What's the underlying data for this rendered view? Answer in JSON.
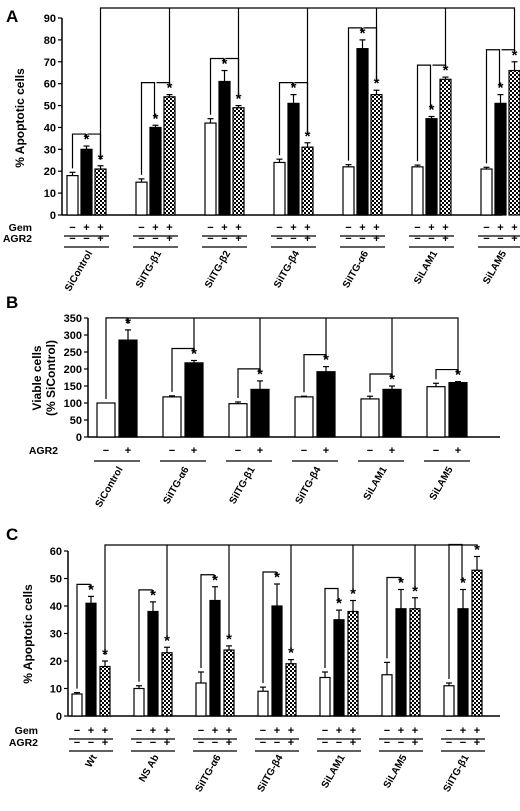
{
  "chart_data": [
    {
      "panel": "A",
      "type": "bar",
      "ylabel": "% Apoptotic cells",
      "ylim": [
        0,
        90
      ],
      "yticks": [
        0,
        10,
        20,
        30,
        40,
        50,
        60,
        70,
        80,
        90
      ],
      "categories": [
        "SiControl",
        "SiITG-β1",
        "SiITG-β2",
        "SiITG-β4",
        "SiITG-α6",
        "SiLAM1",
        "SiLAM5"
      ],
      "treatment_rows": [
        {
          "label": "Gem",
          "signs": [
            "−",
            "+",
            "+"
          ]
        },
        {
          "label": "AGR2",
          "signs": [
            "−",
            "−",
            "+"
          ]
        }
      ],
      "series": [
        {
          "fill": "white",
          "values": [
            18,
            15,
            42,
            24,
            22,
            22,
            21
          ],
          "errors": [
            1.5,
            1.5,
            2,
            1.5,
            1,
            0.8,
            0.8
          ],
          "stars": [
            false,
            false,
            false,
            false,
            false,
            false,
            false
          ]
        },
        {
          "fill": "black",
          "values": [
            30,
            40,
            61,
            51,
            76,
            44,
            51
          ],
          "errors": [
            1.5,
            1,
            5,
            4,
            4,
            1,
            4
          ],
          "stars": [
            true,
            true,
            true,
            true,
            true,
            true,
            true
          ]
        },
        {
          "fill": "checker",
          "values": [
            21,
            54,
            49,
            31,
            55,
            62,
            66
          ],
          "errors": [
            1.5,
            1,
            1,
            2,
            2,
            1,
            4
          ],
          "stars": [
            true,
            true,
            true,
            true,
            true,
            true,
            true
          ]
        }
      ]
    },
    {
      "panel": "B",
      "type": "bar",
      "ylabel": "Viable cells\n(% SiControl)",
      "ylim": [
        0,
        350
      ],
      "yticks": [
        0,
        50,
        100,
        150,
        200,
        250,
        300,
        350
      ],
      "categories": [
        "SiControl",
        "SiITG-α6",
        "SiITG-β1",
        "SiITG-β4",
        "SiLAM1",
        "SiLAM5"
      ],
      "treatment_rows": [
        {
          "label": "AGR2",
          "signs": [
            "−",
            "+"
          ]
        }
      ],
      "series": [
        {
          "fill": "white",
          "values": [
            100,
            118,
            98,
            118,
            112,
            148
          ],
          "errors": [
            0,
            3,
            5,
            2,
            8,
            10
          ],
          "stars": [
            false,
            false,
            false,
            false,
            false,
            false
          ]
        },
        {
          "fill": "black",
          "values": [
            285,
            218,
            140,
            192,
            140,
            160
          ],
          "errors": [
            30,
            7,
            25,
            15,
            10,
            3
          ],
          "stars": [
            true,
            true,
            true,
            true,
            true,
            true
          ]
        }
      ]
    },
    {
      "panel": "C",
      "type": "bar",
      "ylabel": "% Apoptotic cells",
      "ylim": [
        0,
        60
      ],
      "yticks": [
        0,
        10,
        20,
        30,
        40,
        50,
        60
      ],
      "categories": [
        "Wt",
        "NS Ab",
        "SiITG-α6",
        "SiITG-β4",
        "SiLAM1",
        "SiLAM5",
        "SiITG-β1"
      ],
      "treatment_rows": [
        {
          "label": "Gem",
          "signs": [
            "−",
            "+",
            "+"
          ]
        },
        {
          "label": "AGR2",
          "signs": [
            "−",
            "−",
            "+"
          ]
        }
      ],
      "series": [
        {
          "fill": "white",
          "values": [
            8,
            10,
            12,
            9,
            14,
            15,
            11
          ],
          "errors": [
            0.5,
            1,
            4,
            1.5,
            2,
            4.5,
            1
          ],
          "stars": [
            false,
            false,
            false,
            false,
            false,
            false,
            false
          ]
        },
        {
          "fill": "black",
          "values": [
            41,
            38,
            42,
            40,
            35,
            39,
            39
          ],
          "errors": [
            2.5,
            3.5,
            5,
            8,
            3.5,
            7,
            7
          ],
          "stars": [
            true,
            true,
            true,
            true,
            true,
            true,
            true
          ]
        },
        {
          "fill": "checker",
          "values": [
            18,
            23,
            24,
            19,
            38,
            39,
            53
          ],
          "errors": [
            2,
            2,
            1.5,
            1.5,
            4,
            4,
            5
          ],
          "stars": [
            true,
            true,
            true,
            true,
            true,
            true,
            true
          ]
        }
      ]
    }
  ]
}
